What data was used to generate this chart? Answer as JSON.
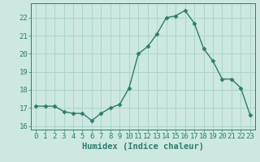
{
  "x": [
    0,
    1,
    2,
    3,
    4,
    5,
    6,
    7,
    8,
    9,
    10,
    11,
    12,
    13,
    14,
    15,
    16,
    17,
    18,
    19,
    20,
    21,
    22,
    23
  ],
  "y": [
    17.1,
    17.1,
    17.1,
    16.8,
    16.7,
    16.7,
    16.3,
    16.7,
    17.0,
    17.2,
    18.1,
    20.0,
    20.4,
    21.1,
    22.0,
    22.1,
    22.4,
    21.7,
    20.3,
    19.6,
    18.6,
    18.6,
    18.1,
    16.6
  ],
  "line_color": "#2e7d6e",
  "marker": "D",
  "marker_size": 2.5,
  "xlabel": "Humidex (Indice chaleur)",
  "xlim": [
    -0.5,
    23.5
  ],
  "ylim": [
    15.8,
    22.8
  ],
  "yticks": [
    16,
    17,
    18,
    19,
    20,
    21,
    22
  ],
  "xticks": [
    0,
    1,
    2,
    3,
    4,
    5,
    6,
    7,
    8,
    9,
    10,
    11,
    12,
    13,
    14,
    15,
    16,
    17,
    18,
    19,
    20,
    21,
    22,
    23
  ],
  "bg_color": "#cce8e0",
  "grid_color": "#aed4cc",
  "line_width": 1.0,
  "xlabel_fontsize": 7.5,
  "tick_fontsize": 6.5
}
